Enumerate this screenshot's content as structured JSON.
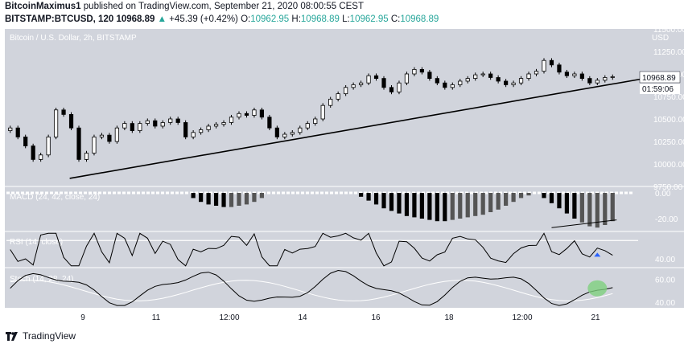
{
  "header": {
    "author": "BitcoinMaximus1",
    "published_text": "published on TradingView.com, September 21, 2020 08:00:55 CEST",
    "symbol": "BITSTAMP:BTCUSD, 120",
    "last": "10968.89",
    "change_arrow": "▲",
    "change": "+45.39 (+0.42%)",
    "o_label": "O:",
    "o_value": "10962.95",
    "h_label": "H:",
    "h_value": "10968.89",
    "l_label": "L:",
    "l_value": "10962.95",
    "c_label": "C:",
    "c_value": "10968.89"
  },
  "main_pane": {
    "title": "Bitcoin / U.S. Dollar, 2h, BITSTAMP",
    "currency": "USD",
    "price_tag": "10968.89",
    "countdown_tag": "01:59:06"
  },
  "macd_pane": {
    "title": "MACD (24, 42, close, 24)"
  },
  "rsi_pane": {
    "title": "RSI (14, close)"
  },
  "stoch_pane": {
    "title": "Stoch (14, 28, 24)"
  },
  "x_axis": {
    "labels": [
      "9",
      "11",
      "12:00",
      "14",
      "16",
      "18",
      "12:00",
      "21"
    ]
  },
  "footer": {
    "brand": "TradingView"
  },
  "colors": {
    "pane_bg": "#d1d4dc",
    "up_candle": "#ffffff",
    "down_candle": "#000000",
    "trendline": "#000000",
    "highlight": "#7ed07e",
    "rsi_marker": "#2962ff",
    "accent": "#26a69a"
  },
  "chart_data": [
    {
      "type": "candlestick",
      "title": "Bitcoin / U.S. Dollar, 2h, BITSTAMP",
      "ylabel": "USD",
      "ylim": [
        9750,
        11500
      ],
      "y_ticks": [
        11500,
        11250,
        11000,
        10750,
        10500,
        10250,
        10000,
        9750
      ],
      "y_tick_labels": [
        "11500.00",
        "11250.00",
        "11000.00",
        "10750.00",
        "10500.00",
        "10250.00",
        "10000.00",
        "9750.00"
      ],
      "x_tick_labels": [
        "9",
        "11",
        "12:00",
        "14",
        "16",
        "18",
        "12:00",
        "21"
      ],
      "close_series": [
        10400,
        10300,
        10200,
        10050,
        10100,
        10300,
        10600,
        10550,
        10400,
        10050,
        10120,
        10300,
        10320,
        10250,
        10400,
        10450,
        10370,
        10450,
        10480,
        10420,
        10460,
        10500,
        10460,
        10300,
        10350,
        10380,
        10420,
        10440,
        10460,
        10520,
        10560,
        10540,
        10600,
        10520,
        10400,
        10300,
        10330,
        10350,
        10400,
        10450,
        10500,
        10650,
        10720,
        10780,
        10850,
        10880,
        10900,
        10980,
        10950,
        10850,
        10800,
        10900,
        11000,
        11050,
        11020,
        10950,
        10900,
        10850,
        10880,
        10920,
        10950,
        10990,
        11000,
        10960,
        10920,
        10880,
        10900,
        10950,
        11000,
        11030,
        11150,
        11100,
        11020,
        10980,
        11000,
        10950,
        10900,
        10930,
        10960,
        10968.89
      ],
      "trendline": {
        "from": {
          "x": "9",
          "y": 9840
        },
        "to": {
          "x": "21",
          "y": 10960
        }
      },
      "last_price": 10968.89
    },
    {
      "type": "bar",
      "title": "MACD (24, 42, close, 24)",
      "ylim": [
        -30,
        5
      ],
      "y_tick_labels": [
        "0.00",
        "-20.00"
      ],
      "histogram_groups": [
        {
          "from_index": 24,
          "to_index": 33,
          "values": [
            -4,
            -7,
            -9,
            -10,
            -11,
            -11,
            -10,
            -9,
            -7,
            -4
          ]
        },
        {
          "from_index": 46,
          "to_index": 68,
          "values": [
            -3,
            -6,
            -9,
            -12,
            -14,
            -16,
            -18,
            -19,
            -20,
            -21,
            -22,
            -22,
            -21,
            -20,
            -19,
            -18,
            -17,
            -15,
            -13,
            -10,
            -7,
            -4,
            -2
          ]
        },
        {
          "from_index": 70,
          "to_index": 79,
          "values": [
            -4,
            -8,
            -12,
            -16,
            -20,
            -23,
            -26,
            -27,
            -25,
            -22
          ]
        }
      ]
    },
    {
      "type": "line",
      "title": "RSI (14, close)",
      "ylim": [
        30,
        70
      ],
      "y_tick_labels": [
        "40.00"
      ]
    },
    {
      "type": "line",
      "title": "Stoch (14, 28, 24)",
      "ylim": [
        35,
        70
      ],
      "y_tick_labels": [
        "60.00",
        "40.00"
      ]
    }
  ]
}
